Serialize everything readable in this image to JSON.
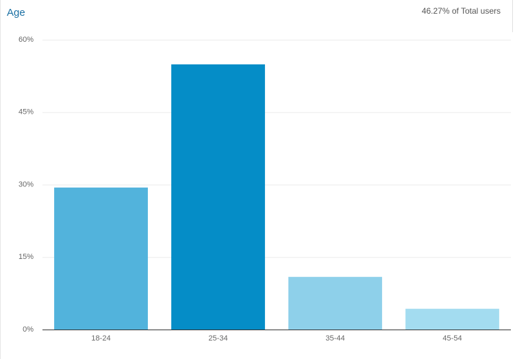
{
  "chart_data": {
    "type": "bar",
    "title": "Age",
    "subtitle": "46.27% of Total users",
    "categories": [
      "18-24",
      "25-34",
      "35-44",
      "45-54"
    ],
    "values": [
      29.4,
      54.9,
      10.9,
      4.3
    ],
    "colors": [
      "#52b3dc",
      "#058dc7",
      "#8ed0ea",
      "#a3dcf0"
    ],
    "ylim": [
      0,
      60
    ],
    "yticks": [
      {
        "value": 0,
        "label": "0%"
      },
      {
        "value": 15,
        "label": "15%"
      },
      {
        "value": 30,
        "label": "30%"
      },
      {
        "value": 45,
        "label": "45%"
      },
      {
        "value": 60,
        "label": "60%"
      }
    ],
    "grid": true
  }
}
